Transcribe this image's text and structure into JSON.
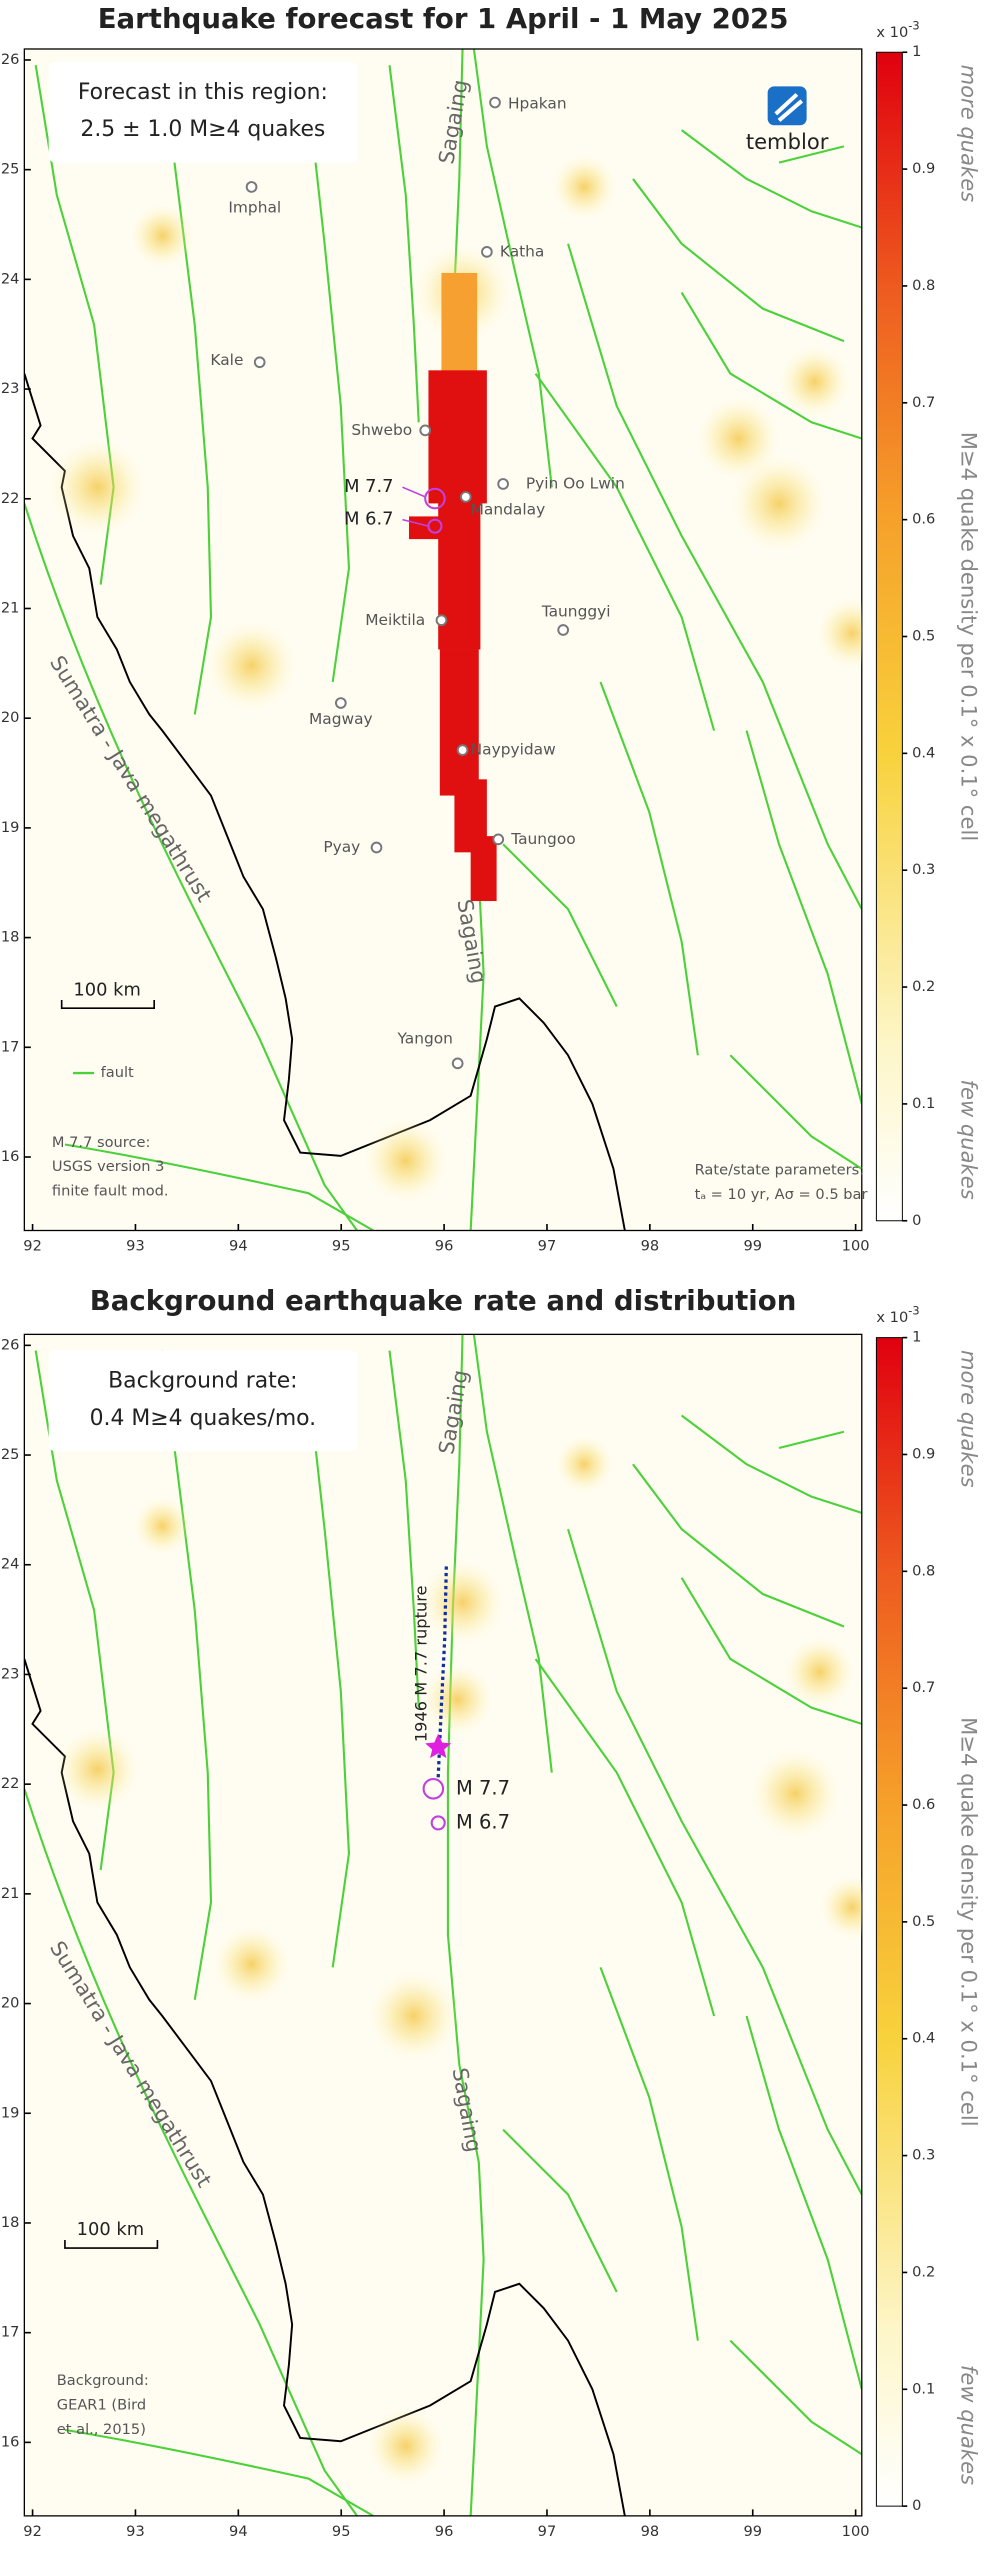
{
  "panels": [
    {
      "title": "Earthquake forecast for 1 April - 1 May 2025",
      "box": [
        "Forecast in this region:",
        "2.5 ± 1.0  M≥4 quakes"
      ],
      "logo": "temblor",
      "cities": [
        "Hpakan",
        "Imphal",
        "Katha",
        "Kale",
        "Shwebo",
        "Pyin Oo Lwin",
        "Mandalay",
        "Meiktila",
        "Taunggyi",
        "Magway",
        "Naypyidaw",
        "Pyay",
        "Taungoo",
        "Yangon"
      ],
      "faults": [
        "Sagaing",
        "Sagaing",
        "Sumatra - Java megathrust"
      ],
      "events": [
        "M 7.7",
        "M 6.7"
      ],
      "scale_bar": "100 km",
      "legend": "fault",
      "source": [
        "M 7.7 source:",
        "USGS version 3",
        "finite fault mod."
      ],
      "parameters": [
        "Rate/state parameters:",
        "tₐ = 10 yr, Aσ = 0.5 bar"
      ],
      "xlim": [
        91.92,
        100.06
      ],
      "ylim": [
        15.33,
        26.1
      ],
      "xticks": [
        92,
        93,
        94,
        95,
        96,
        97,
        98,
        99,
        100
      ],
      "yticks": [
        16,
        17,
        18,
        19,
        20,
        21,
        22,
        23,
        24,
        25,
        26
      ],
      "colorbar": {
        "multiplier": "x 10",
        "exponent": "-3",
        "lim": [
          0,
          1
        ],
        "ticks": [
          0,
          0.1,
          0.2,
          0.3,
          0.4,
          0.5,
          0.6,
          0.7,
          0.8,
          0.9,
          1
        ],
        "label": "M≥4 quake density per 0.1° x 0.1° cell",
        "high": "more quakes",
        "low": "few quakes"
      }
    },
    {
      "title": "Background earthquake rate and distribution",
      "box": [
        "Background rate:",
        "0.4 M≥4 quakes/mo."
      ],
      "faults": [
        "Sagaing",
        "Sagaing",
        "Sumatra - Java megathrust"
      ],
      "rupture": "1946 M 7.7 rupture",
      "events": [
        "M 7.7",
        "M 6.7"
      ],
      "scale_bar": "100 km",
      "source": [
        "Background:",
        "GEAR1 (Bird",
        "et al., 2015)"
      ],
      "xlim": [
        91.92,
        100.06
      ],
      "ylim": [
        15.33,
        26.1
      ],
      "xticks": [
        92,
        93,
        94,
        95,
        96,
        97,
        98,
        99,
        100
      ],
      "yticks": [
        16,
        17,
        18,
        19,
        20,
        21,
        22,
        23,
        24,
        25,
        26
      ],
      "colorbar": {
        "multiplier": "x 10",
        "exponent": "-3",
        "lim": [
          0,
          1
        ],
        "ticks": [
          0,
          0.1,
          0.2,
          0.3,
          0.4,
          0.5,
          0.6,
          0.7,
          0.8,
          0.9,
          1
        ],
        "label": "M≥4 quake density per 0.1° x 0.1° cell",
        "high": "more quakes",
        "low": "few quakes"
      }
    }
  ]
}
